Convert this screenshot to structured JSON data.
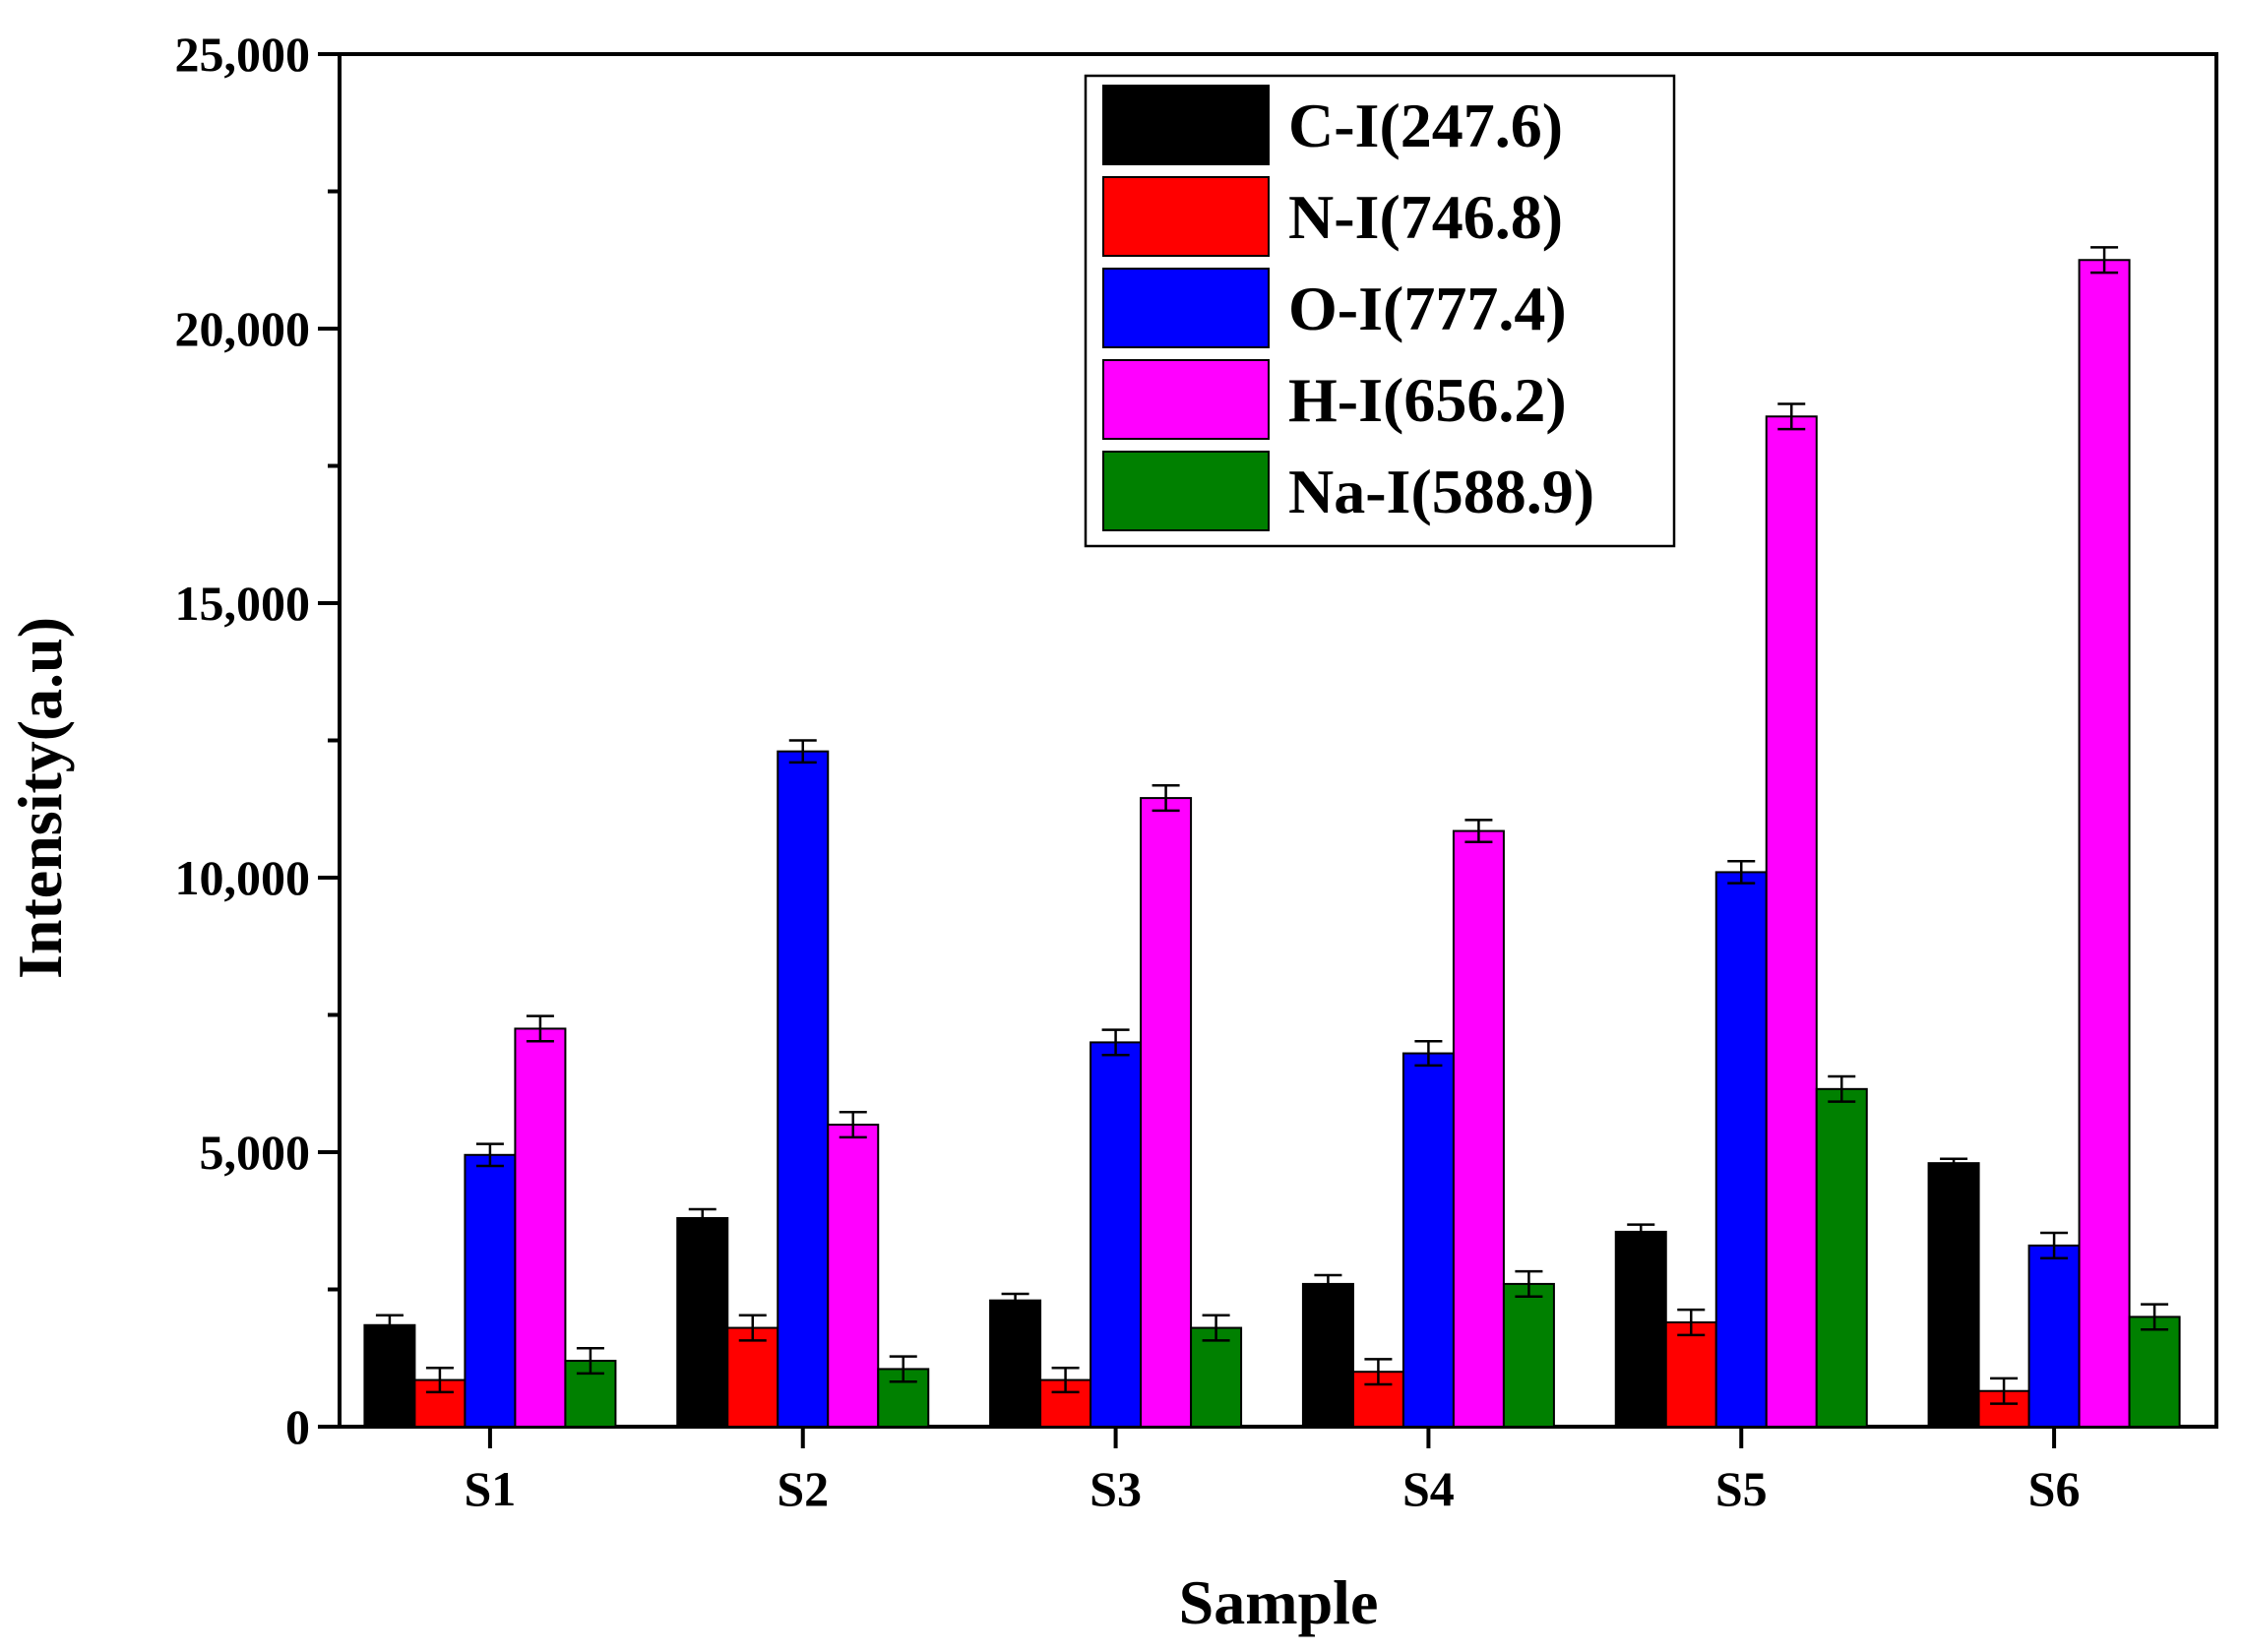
{
  "chart_data": {
    "type": "bar",
    "title": "",
    "xlabel": "Sample",
    "ylabel": "Intensity(a.u)",
    "ylim": [
      0,
      25000
    ],
    "yticks": [
      0,
      5000,
      10000,
      15000,
      20000,
      25000
    ],
    "ytick_labels": [
      "0",
      "5,000",
      "10,000",
      "15,000",
      "20,000",
      "25,000"
    ],
    "categories": [
      "S1",
      "S2",
      "S3",
      "S4",
      "S5",
      "S6"
    ],
    "legend_position": "top-center",
    "grid": false,
    "series": [
      {
        "name": "C-I(247.6)",
        "color": "#000000",
        "values": [
          1850,
          3800,
          2300,
          2600,
          3550,
          4800
        ],
        "errors": [
          180,
          160,
          120,
          160,
          130,
          80
        ]
      },
      {
        "name": "N-I(746.8)",
        "color": "#ff0000",
        "values": [
          850,
          1800,
          850,
          1000,
          1900,
          650
        ],
        "errors": [
          220,
          230,
          220,
          230,
          230,
          230
        ]
      },
      {
        "name": "O-I(777.4)",
        "color": "#0000ff",
        "values": [
          4950,
          12300,
          7000,
          6800,
          10100,
          3300
        ],
        "errors": [
          200,
          200,
          230,
          220,
          200,
          230
        ]
      },
      {
        "name": "H-I(656.2)",
        "color": "#ff00ff",
        "values": [
          7250,
          5500,
          11450,
          10850,
          18400,
          21250
        ],
        "errors": [
          230,
          230,
          230,
          200,
          230,
          230
        ]
      },
      {
        "name": "Na-I(588.9)",
        "color": "#008000",
        "values": [
          1200,
          1050,
          1800,
          2600,
          6150,
          2000
        ],
        "errors": [
          230,
          230,
          230,
          230,
          230,
          230
        ]
      }
    ]
  }
}
